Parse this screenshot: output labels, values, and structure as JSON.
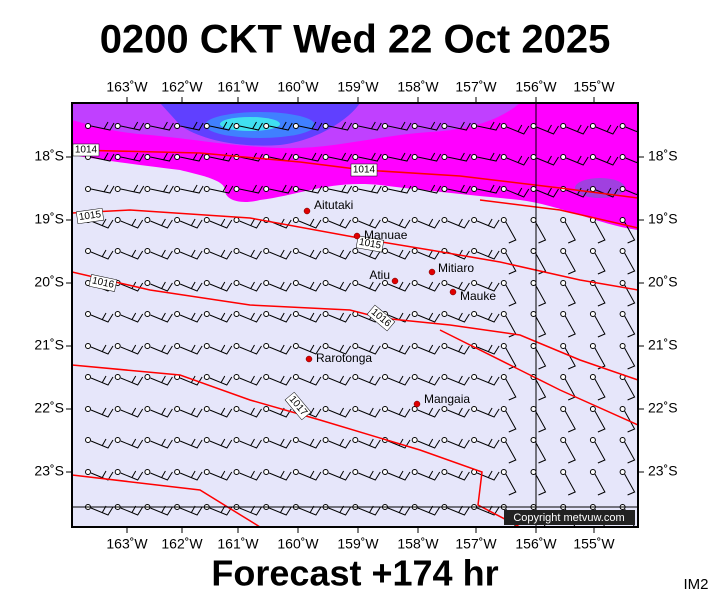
{
  "header": {
    "title": "0200 CKT Wed 22 Oct 2025"
  },
  "map": {
    "lon_ticks": [
      "163˚W",
      "162˚W",
      "161˚W",
      "160˚W",
      "159˚W",
      "158˚W",
      "157˚W",
      "156˚W",
      "155˚W"
    ],
    "lat_ticks": [
      "18˚S",
      "19˚S",
      "20˚S",
      "21˚S",
      "22˚S",
      "23˚S"
    ],
    "places": [
      "Aitutaki",
      "Manuae",
      "Atiu",
      "Mitiaro",
      "Mauke",
      "Rarotonga",
      "Mangaia"
    ],
    "isobar_labels": [
      "1014",
      "1014",
      "1015",
      "1015",
      "1016",
      "1016",
      "1017"
    ],
    "copyright": "Copyright metvuw.com"
  },
  "footer": {
    "forecast": "Forecast +174 hr",
    "image_id": "IM2"
  }
}
